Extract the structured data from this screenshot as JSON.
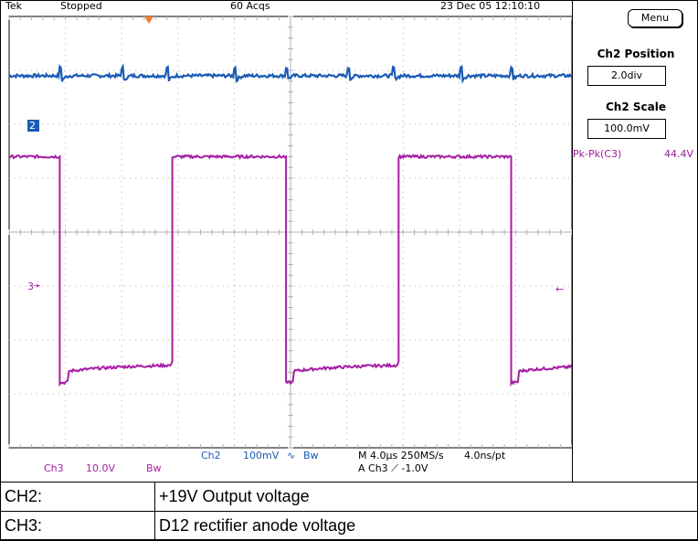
{
  "status_bar": {
    "brand": "Tek",
    "run_state": "Stopped",
    "acquisitions": "60 Acqs",
    "datetime": "23 Dec 05 12:10:10"
  },
  "side_panel": {
    "menu_label": "Menu",
    "position_title": "Ch2 Position",
    "position_value": "2.0div",
    "scale_title": "Ch2 Scale",
    "scale_value": "100.0mV",
    "measurement_label": "Pk-Pk(C3)",
    "measurement_value": "44.4V"
  },
  "markers": {
    "ch2_marker": "2",
    "ch3_marker": "3"
  },
  "readouts": {
    "ch2_label": "Ch2",
    "ch2_scale": "100mV",
    "ch2_bw": "Bw",
    "ch3_label": "Ch3",
    "ch3_scale": "10.0V",
    "ch3_bw": "Bw",
    "timebase": "M 4.0µs 250MS/s",
    "resolution": "4.0ns/pt",
    "trigger": "A  Ch3  ⟋  -1.0V"
  },
  "colors": {
    "ch2_trace": "#1a5bb5",
    "ch3_trace": "#a51ea5",
    "trigger_marker": "#f07b2a",
    "grid": "#b0b0b0"
  },
  "chart_data": {
    "type": "line",
    "title": "",
    "xlabel": "",
    "ylabel": "",
    "x_divisions": 10,
    "y_divisions": 8,
    "series": [
      {
        "name": "Ch2",
        "color": "#1a5bb5",
        "description_values": {
          "level_div": 2.9,
          "spike_times_div": [
            0.9,
            2.0,
            2.8,
            4.0,
            4.9,
            6.0,
            6.8,
            8.0,
            8.9
          ]
        }
      },
      {
        "name": "Ch3",
        "color": "#a51ea5",
        "high_level_div": 1.4,
        "low_level_div": -2.6,
        "period_div": 4.0,
        "edges_div": [
          {
            "t": 0.9,
            "dir": "down"
          },
          {
            "t": 2.9,
            "dir": "up"
          },
          {
            "t": 4.9,
            "dir": "down"
          },
          {
            "t": 6.9,
            "dir": "up"
          },
          {
            "t": 8.9,
            "dir": "down"
          }
        ]
      }
    ]
  },
  "legend_table": {
    "rows": [
      {
        "channel": "CH2:",
        "description": "+19V Output voltage"
      },
      {
        "channel": "CH3:",
        "description": "D12 rectifier anode voltage"
      }
    ]
  }
}
